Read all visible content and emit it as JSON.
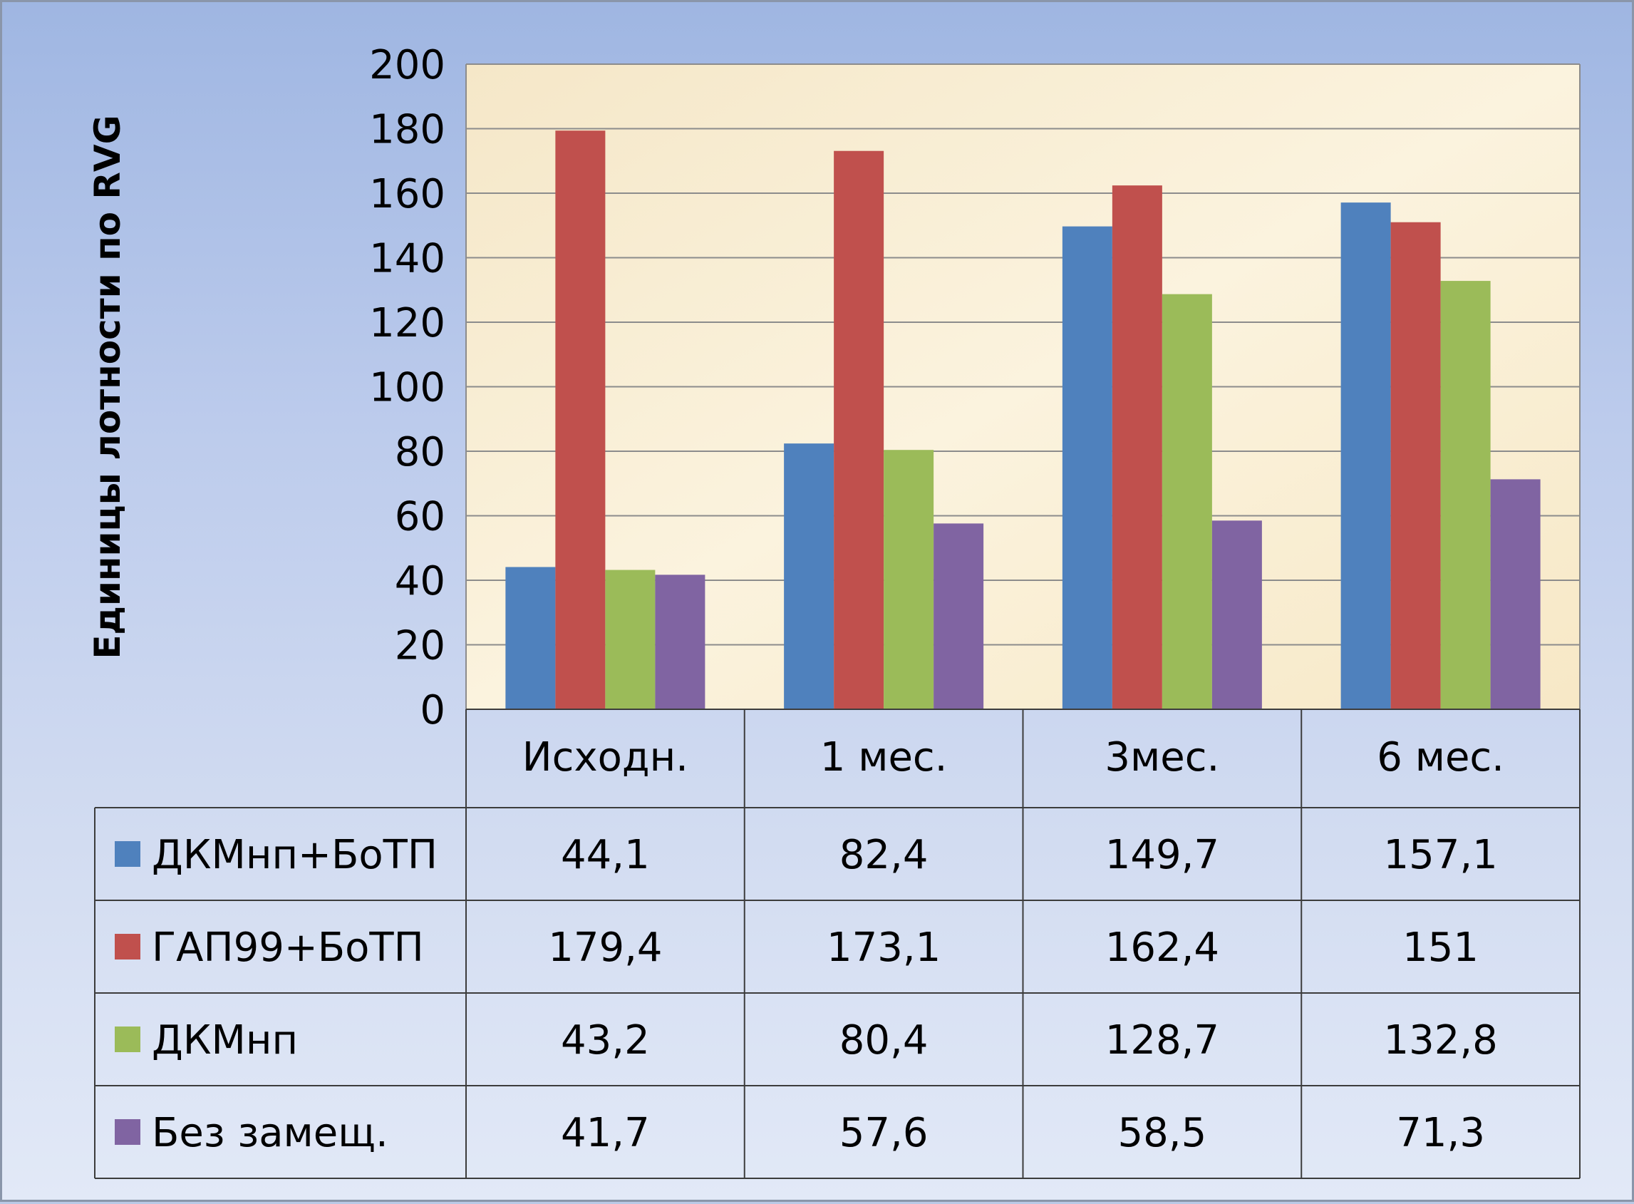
{
  "chart_data": {
    "type": "bar",
    "ylabel": "Единицы лотности по RVG",
    "xlabel": "",
    "ylim": [
      0,
      200
    ],
    "y_ticks": [
      0,
      20,
      40,
      60,
      80,
      100,
      120,
      140,
      160,
      180,
      200
    ],
    "categories": [
      "Исходн.",
      "1 мес.",
      "3мес.",
      "6 мес."
    ],
    "grid": true,
    "legend": "data-table",
    "series": [
      {
        "name": "ДКМнп+БоТП",
        "color": "#4f81bd",
        "values": [
          44.1,
          82.4,
          149.7,
          157.1
        ],
        "labels": [
          "44,1",
          "82,4",
          "149,7",
          "157,1"
        ]
      },
      {
        "name": "ГАП99+БоТП",
        "color": "#c0504d",
        "values": [
          179.4,
          173.1,
          162.4,
          151
        ],
        "labels": [
          "179,4",
          "173,1",
          "162,4",
          "151"
        ]
      },
      {
        "name": "ДКМнп",
        "color": "#9bbb59",
        "values": [
          43.2,
          80.4,
          128.7,
          132.8
        ],
        "labels": [
          "43,2",
          "80,4",
          "128,7",
          "132,8"
        ]
      },
      {
        "name": "Без замещ.",
        "color": "#8064a2",
        "values": [
          41.7,
          57.6,
          58.5,
          71.3
        ],
        "labels": [
          "41,7",
          "57,6",
          "58,5",
          "71,3"
        ]
      }
    ]
  }
}
